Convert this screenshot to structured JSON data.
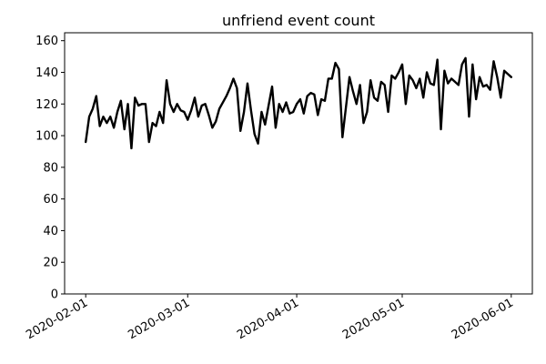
{
  "chart_data": {
    "type": "line",
    "title": "unfriend event count",
    "xlabel": "",
    "ylabel": "",
    "x_ticks": [
      "2020-02-01",
      "2020-03-01",
      "2020-04-01",
      "2020-05-01",
      "2020-06-01"
    ],
    "y_ticks": [
      0,
      20,
      40,
      60,
      80,
      100,
      120,
      140,
      160
    ],
    "xlim": [
      "2020-01-26",
      "2020-06-07"
    ],
    "ylim": [
      0,
      165
    ],
    "grid": false,
    "legend": "none",
    "line_color": "#000000",
    "series": [
      {
        "x": [
          "2020-02-01",
          "2020-02-02",
          "2020-02-03",
          "2020-02-04",
          "2020-02-05",
          "2020-02-06",
          "2020-02-07",
          "2020-02-08",
          "2020-02-09",
          "2020-02-10",
          "2020-02-11",
          "2020-02-12",
          "2020-02-13",
          "2020-02-14",
          "2020-02-15",
          "2020-02-16",
          "2020-02-17",
          "2020-02-18",
          "2020-02-19",
          "2020-02-20",
          "2020-02-21",
          "2020-02-22",
          "2020-02-23",
          "2020-02-24",
          "2020-02-25",
          "2020-02-26",
          "2020-02-27",
          "2020-02-28",
          "2020-02-29",
          "2020-03-01",
          "2020-03-02",
          "2020-03-03",
          "2020-03-04",
          "2020-03-05",
          "2020-03-06",
          "2020-03-07",
          "2020-03-08",
          "2020-03-09",
          "2020-03-10",
          "2020-03-11",
          "2020-03-12",
          "2020-03-13",
          "2020-03-14",
          "2020-03-15",
          "2020-03-16",
          "2020-03-17",
          "2020-03-18",
          "2020-03-19",
          "2020-03-20",
          "2020-03-21",
          "2020-03-22",
          "2020-03-23",
          "2020-03-24",
          "2020-03-25",
          "2020-03-26",
          "2020-03-27",
          "2020-03-28",
          "2020-03-29",
          "2020-03-30",
          "2020-03-31",
          "2020-04-01",
          "2020-04-02",
          "2020-04-03",
          "2020-04-04",
          "2020-04-05",
          "2020-04-06",
          "2020-04-07",
          "2020-04-08",
          "2020-04-09",
          "2020-04-10",
          "2020-04-11",
          "2020-04-12",
          "2020-04-13",
          "2020-04-14",
          "2020-04-15",
          "2020-04-16",
          "2020-04-17",
          "2020-04-18",
          "2020-04-19",
          "2020-04-20",
          "2020-04-21",
          "2020-04-22",
          "2020-04-23",
          "2020-04-24",
          "2020-04-25",
          "2020-04-26",
          "2020-04-27",
          "2020-04-28",
          "2020-04-29",
          "2020-04-30",
          "2020-05-01",
          "2020-05-02",
          "2020-05-03",
          "2020-05-04",
          "2020-05-05",
          "2020-05-06",
          "2020-05-07",
          "2020-05-08",
          "2020-05-09",
          "2020-05-10",
          "2020-05-11",
          "2020-05-12",
          "2020-05-13",
          "2020-05-14",
          "2020-05-15",
          "2020-05-16",
          "2020-05-17",
          "2020-05-18",
          "2020-05-19",
          "2020-05-20",
          "2020-05-21",
          "2020-05-22",
          "2020-05-23",
          "2020-05-24",
          "2020-05-25",
          "2020-05-26",
          "2020-05-27",
          "2020-05-28",
          "2020-05-29",
          "2020-05-30",
          "2020-05-31",
          "2020-06-01"
        ],
        "values": [
          96,
          112,
          117,
          125,
          106,
          112,
          108,
          112,
          105,
          115,
          122,
          104,
          120,
          92,
          124,
          119,
          120,
          120,
          96,
          108,
          106,
          115,
          108,
          135,
          120,
          115,
          120,
          116,
          115,
          110,
          116,
          124,
          112,
          119,
          120,
          113,
          105,
          109,
          117,
          121,
          125,
          130,
          136,
          130,
          103,
          115,
          133,
          116,
          101,
          95,
          115,
          107,
          119,
          131,
          105,
          120,
          115,
          121,
          114,
          115,
          120,
          123,
          114,
          125,
          127,
          126,
          113,
          123,
          122,
          136,
          136,
          146,
          142,
          99,
          118,
          137,
          128,
          120,
          132,
          108,
          115,
          135,
          124,
          122,
          134,
          132,
          115,
          138,
          136,
          140,
          145,
          120,
          138,
          135,
          130,
          136,
          124,
          140,
          133,
          132,
          148,
          104,
          141,
          133,
          136,
          134,
          132,
          145,
          149,
          112,
          145,
          123,
          137,
          131,
          132,
          129,
          147,
          137,
          124,
          141,
          139,
          137
        ]
      }
    ]
  }
}
